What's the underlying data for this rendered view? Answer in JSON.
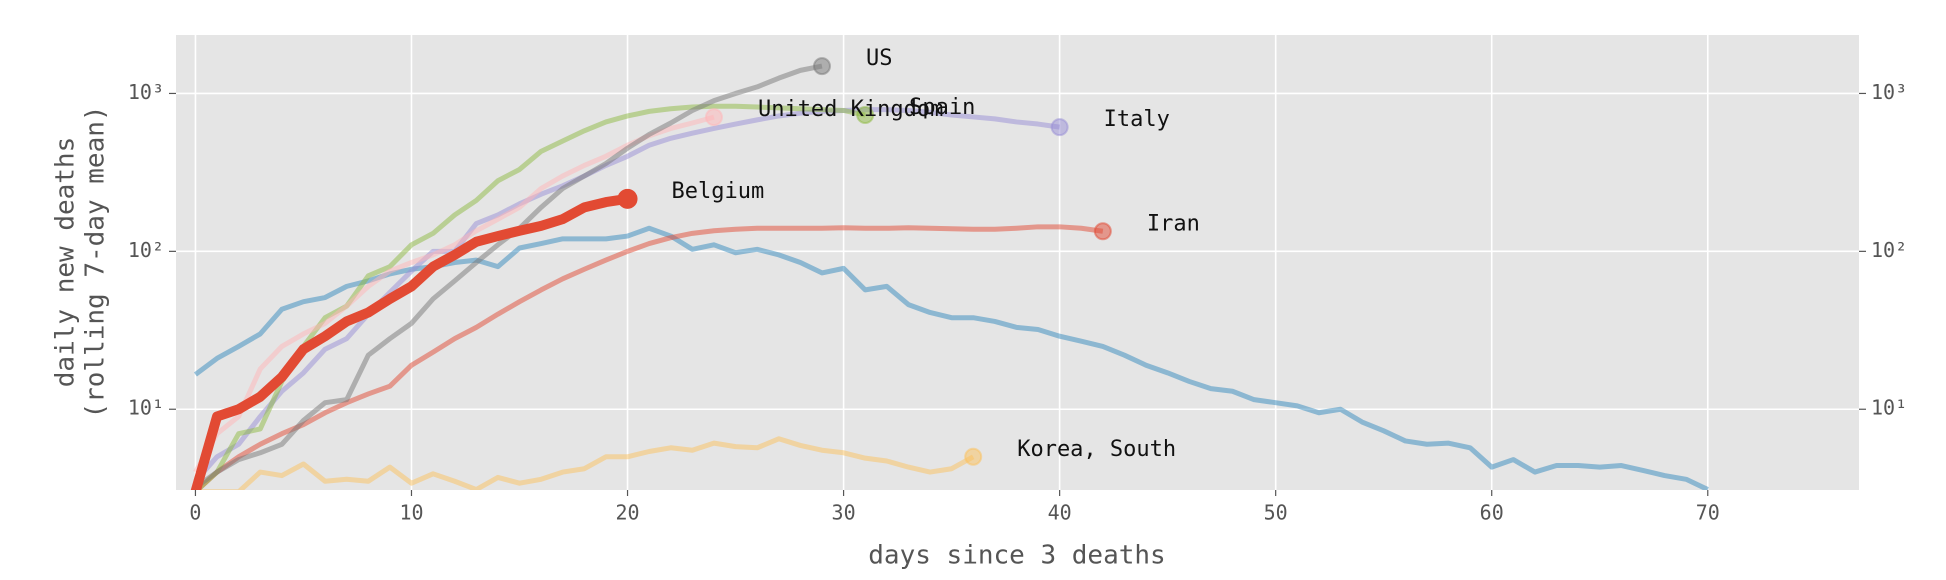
{
  "chart_data": {
    "type": "line",
    "xlabel": "days since 3 deaths",
    "ylabel": [
      "daily new deaths",
      "(rolling 7-day mean)"
    ],
    "yscale": "log",
    "grid": true,
    "xlim": [
      -0.9,
      77
    ],
    "ylim": [
      3.08,
      2345
    ],
    "xticks": [
      0,
      10,
      20,
      30,
      40,
      50,
      60,
      70
    ],
    "yticks": [
      {
        "value": 10,
        "label": "10¹"
      },
      {
        "value": 100,
        "label": "10²"
      },
      {
        "value": 1000,
        "label": "10³"
      }
    ],
    "x": [
      0,
      1,
      2,
      3,
      4,
      5,
      6,
      7,
      8,
      9,
      10,
      11,
      12,
      13,
      14,
      15,
      16,
      17,
      18,
      19,
      20,
      21,
      22,
      23,
      24,
      25,
      26,
      27,
      28,
      29,
      30,
      31,
      32,
      33,
      34,
      35,
      36,
      37,
      38,
      39,
      40,
      41,
      42,
      43,
      44,
      45,
      46,
      47,
      48,
      49,
      50,
      51,
      52,
      53,
      54,
      55,
      56,
      57,
      58,
      59,
      60,
      61,
      62,
      63,
      64,
      65,
      66,
      67,
      68,
      69,
      70
    ],
    "series": [
      {
        "color": "#348ABD",
        "values": [
          16.6,
          21,
          25,
          30,
          43,
          48,
          51,
          60,
          65,
          72,
          77,
          80,
          85,
          88,
          80,
          105,
          112,
          120,
          120,
          120,
          125,
          140,
          125,
          103,
          110,
          98,
          103,
          95,
          85,
          73,
          78,
          57,
          60,
          46,
          41,
          38,
          38,
          36,
          33,
          32,
          29,
          27,
          25,
          22,
          19,
          17,
          15,
          13.5,
          13,
          11.5,
          11,
          10.5,
          9.5,
          10,
          8.3,
          7.3,
          6.3,
          6,
          6.1,
          5.7,
          4.3,
          4.8,
          4,
          4.4,
          4.4,
          4.3,
          4.4,
          4.1,
          3.8,
          3.6,
          3.1
        ]
      },
      {
        "name": "Korea, South",
        "color": "#FBC15E",
        "values": [
          3,
          3,
          3,
          4,
          3.8,
          4.5,
          3.5,
          3.6,
          3.5,
          4.3,
          3.4,
          3.9,
          3.5,
          3.1,
          3.7,
          3.4,
          3.6,
          4,
          4.2,
          5,
          5,
          5.4,
          5.7,
          5.5,
          6.1,
          5.8,
          5.7,
          6.5,
          5.9,
          5.5,
          5.3,
          4.9,
          4.7,
          4.3,
          4,
          4.2,
          5.0,
          null,
          null,
          null,
          null,
          null,
          null,
          null,
          null,
          null,
          null,
          null,
          null,
          null,
          null,
          null,
          null,
          null,
          null,
          null,
          null,
          null,
          null,
          null,
          null,
          null,
          null,
          null,
          null,
          null,
          null,
          null,
          null,
          null,
          null
        ]
      },
      {
        "name": "Iran",
        "color": "#E24A33",
        "values": [
          3,
          4,
          5,
          6,
          7,
          8,
          9.5,
          11,
          12.5,
          14,
          19,
          23,
          28,
          33,
          40,
          48,
          57,
          67,
          77,
          88,
          100,
          112,
          122,
          130,
          135,
          138,
          140,
          140,
          140,
          140,
          141,
          140,
          140,
          141,
          140,
          139,
          138,
          138,
          140,
          143,
          143,
          140,
          134,
          null,
          null,
          null,
          null,
          null,
          null,
          null,
          null,
          null,
          null,
          null,
          null,
          null,
          null,
          null,
          null,
          null,
          null,
          null,
          null,
          null,
          null,
          null,
          null,
          null,
          null,
          null,
          null
        ]
      },
      {
        "name": "Italy",
        "color": "#988ED5",
        "values": [
          3.5,
          5,
          6,
          9,
          13,
          17,
          24,
          28,
          40,
          55,
          75,
          100,
          100,
          150,
          170,
          200,
          230,
          260,
          300,
          350,
          400,
          470,
          520,
          560,
          600,
          640,
          680,
          720,
          750,
          770,
          780,
          790,
          790,
          780,
          760,
          730,
          710,
          690,
          660,
          640,
          612,
          null,
          null,
          null,
          null,
          null,
          null,
          null,
          null,
          null,
          null,
          null,
          null,
          null,
          null,
          null,
          null,
          null,
          null,
          null,
          null,
          null,
          null,
          null,
          null,
          null,
          null,
          null,
          null,
          null,
          null
        ]
      },
      {
        "name": "Spain",
        "color": "#8EBA42",
        "values": [
          3,
          4,
          7,
          7.5,
          15,
          25,
          38,
          45,
          70,
          80,
          110,
          130,
          170,
          210,
          280,
          330,
          430,
          500,
          580,
          660,
          720,
          770,
          800,
          820,
          830,
          830,
          820,
          810,
          800,
          790,
          780,
          730,
          null,
          null,
          null,
          null,
          null,
          null,
          null,
          null,
          null,
          null,
          null,
          null,
          null,
          null,
          null,
          null,
          null,
          null,
          null,
          null,
          null,
          null,
          null,
          null,
          null,
          null,
          null,
          null,
          null,
          null,
          null,
          null,
          null,
          null,
          null,
          null,
          null,
          null,
          null
        ]
      },
      {
        "name": "United Kingdom",
        "color": "#FFB5B8",
        "values": [
          4,
          7,
          9,
          18,
          25,
          30,
          35,
          45,
          60,
          75,
          85,
          95,
          110,
          135,
          160,
          190,
          250,
          300,
          350,
          400,
          470,
          540,
          600,
          650,
          708,
          null,
          null,
          null,
          null,
          null,
          null,
          null,
          null,
          null,
          null,
          null,
          null,
          null,
          null,
          null,
          null,
          null,
          null,
          null,
          null,
          null,
          null,
          null,
          null,
          null,
          null,
          null,
          null,
          null,
          null,
          null,
          null,
          null,
          null,
          null,
          null,
          null,
          null,
          null,
          null,
          null,
          null,
          null,
          null,
          null,
          null
        ]
      },
      {
        "name": "US",
        "color": "#777777",
        "values": [
          3.2,
          4,
          4.8,
          5.3,
          6,
          8.5,
          11,
          11.5,
          22,
          28,
          35,
          50,
          65,
          85,
          110,
          140,
          190,
          250,
          300,
          360,
          450,
          550,
          650,
          780,
          900,
          1000,
          1100,
          1250,
          1400,
          1490,
          null,
          null,
          null,
          null,
          null,
          null,
          null,
          null,
          null,
          null,
          null,
          null,
          null,
          null,
          null,
          null,
          null,
          null,
          null,
          null,
          null,
          null,
          null,
          null,
          null,
          null,
          null,
          null,
          null,
          null,
          null,
          null,
          null,
          null,
          null,
          null,
          null,
          null,
          null,
          null,
          null
        ]
      },
      {
        "name": "Belgium",
        "color": "#E24A33",
        "highlight": true,
        "values": [
          3,
          9,
          10,
          12,
          16,
          24,
          29,
          36,
          41,
          50,
          60,
          80,
          95,
          115,
          125,
          135,
          145,
          160,
          190,
          205,
          215,
          null,
          null,
          null,
          null,
          null,
          null,
          null,
          null,
          null,
          null,
          null,
          null,
          null,
          null,
          null,
          null,
          null,
          null,
          null,
          null,
          null,
          null,
          null,
          null,
          null,
          null,
          null,
          null,
          null,
          null,
          null,
          null,
          null,
          null,
          null,
          null,
          null,
          null,
          null,
          null,
          null,
          null,
          null,
          null,
          null,
          null,
          null,
          null,
          null,
          null
        ]
      }
    ]
  }
}
